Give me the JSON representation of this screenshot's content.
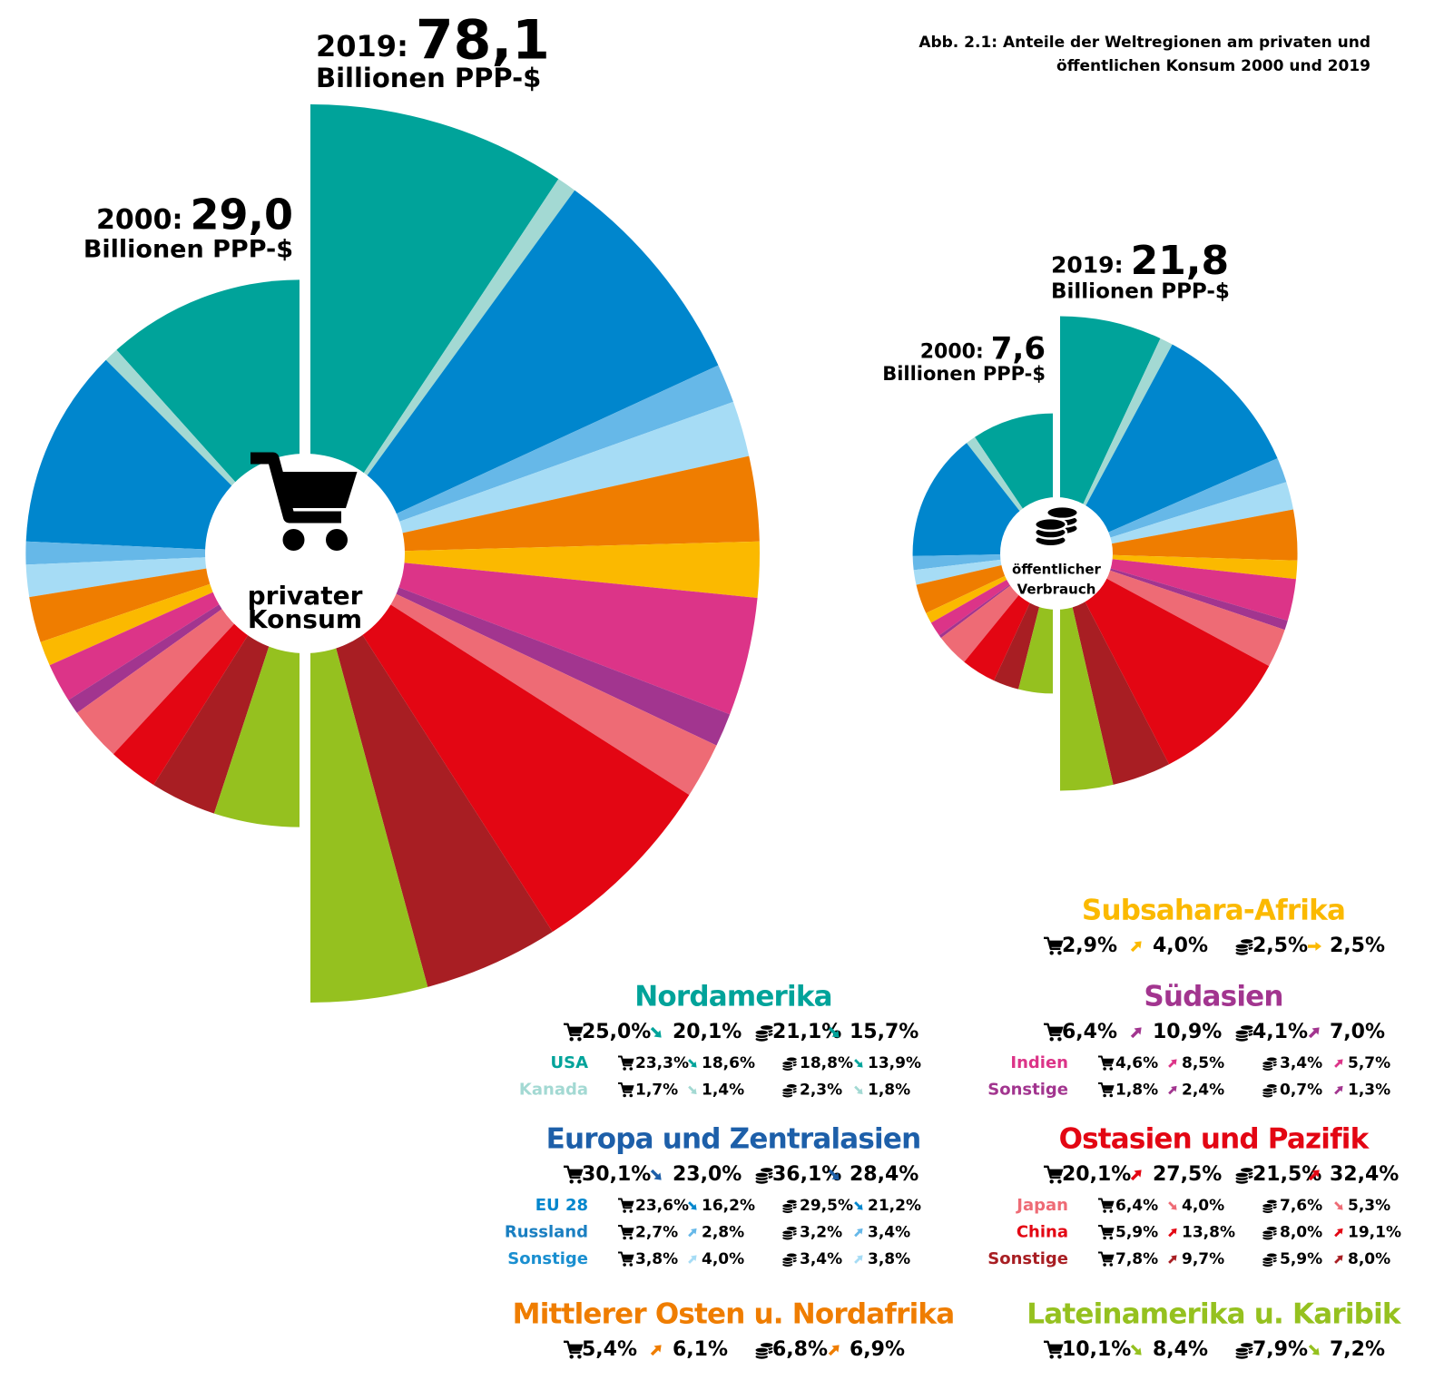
{
  "title": [
    "Abb. 2.1:  Anteile der Weltregionen am privaten und",
    "öffentlichen Konsum 2000 und  2019"
  ],
  "year_labels": [
    "2000:",
    "2019:"
  ],
  "unit": "Billionen PPP-$",
  "chart_data": [
    {
      "type": "half-pie",
      "center_label": [
        "privater",
        "Konsum"
      ],
      "totals": [
        {
          "value": 29.0,
          "label": "29,0"
        },
        {
          "value": 78.1,
          "label": "78,1"
        }
      ]
    },
    {
      "type": "half-pie",
      "center_label": [
        "öffentlicher",
        "Verbrauch"
      ],
      "totals": [
        {
          "value": 7.6,
          "label": "7,6"
        },
        {
          "value": 21.8,
          "label": "21,8"
        }
      ]
    }
  ],
  "regions": [
    {
      "name": "Nordamerika",
      "color": "#00a39a",
      "values": [
        [
          {
            "value": 25.0,
            "label": "25,0%"
          },
          {
            "value": 20.1,
            "label": "20,1%"
          }
        ],
        [
          {
            "value": 21.1,
            "label": "21,1%"
          },
          {
            "value": 15.7,
            "label": "15,7%"
          }
        ]
      ],
      "subregions": [
        {
          "name": "USA",
          "color": "#00a39a",
          "values": [
            [
              {
                "value": 23.3,
                "label": "23,3%"
              },
              {
                "value": 18.6,
                "label": "18,6%"
              }
            ],
            [
              {
                "value": 18.8,
                "label": "18,8%"
              },
              {
                "value": 13.9,
                "label": "13,9%"
              }
            ]
          ]
        },
        {
          "name": "Kanada",
          "color": "#a3d9d3",
          "values": [
            [
              {
                "value": 1.7,
                "label": "1,7%"
              },
              {
                "value": 1.4,
                "label": "1,4%"
              }
            ],
            [
              {
                "value": 2.3,
                "label": "2,3%"
              },
              {
                "value": 1.8,
                "label": "1,8%"
              }
            ]
          ]
        }
      ]
    },
    {
      "name": "Europa und Zentralasien",
      "color": "#1d5fa9",
      "values": [
        [
          {
            "value": 30.1,
            "label": "30,1%"
          },
          {
            "value": 23.0,
            "label": "23,0%"
          }
        ],
        [
          {
            "value": 36.1,
            "label": "36,1%"
          },
          {
            "value": 28.4,
            "label": "28,4%"
          }
        ]
      ],
      "subregions": [
        {
          "name": "EU 28",
          "color": "#0086cd",
          "values": [
            [
              {
                "value": 23.6,
                "label": "23,6%"
              },
              {
                "value": 16.2,
                "label": "16,2%"
              }
            ],
            [
              {
                "value": 29.5,
                "label": "29,5%"
              },
              {
                "value": 21.2,
                "label": "21,2%"
              }
            ]
          ]
        },
        {
          "name": "Russland",
          "color": "#66b8e8",
          "text_color": "#1a7fc1",
          "values": [
            [
              {
                "value": 2.7,
                "label": "2,7%"
              },
              {
                "value": 2.8,
                "label": "2,8%"
              }
            ],
            [
              {
                "value": 3.2,
                "label": "3,2%"
              },
              {
                "value": 3.4,
                "label": "3,4%"
              }
            ]
          ]
        },
        {
          "name": "Sonstige",
          "color": "#a6dcf5",
          "text_color": "#1a8fd0",
          "values": [
            [
              {
                "value": 3.8,
                "label": "3,8%"
              },
              {
                "value": 4.0,
                "label": "4,0%"
              }
            ],
            [
              {
                "value": 3.4,
                "label": "3,4%"
              },
              {
                "value": 3.8,
                "label": "3,8%"
              }
            ]
          ]
        }
      ]
    },
    {
      "name": "Mittlerer Osten u. Nordafrika",
      "color": "#ef7d00",
      "values": [
        [
          {
            "value": 5.4,
            "label": "5,4%"
          },
          {
            "value": 6.1,
            "label": "6,1%"
          }
        ],
        [
          {
            "value": 6.8,
            "label": "6,8%"
          },
          {
            "value": 6.9,
            "label": "6,9%"
          }
        ]
      ]
    },
    {
      "name": "Subsahara-Afrika",
      "color": "#fbb900",
      "values": [
        [
          {
            "value": 2.9,
            "label": "2,9%"
          },
          {
            "value": 4.0,
            "label": "4,0%"
          }
        ],
        [
          {
            "value": 2.5,
            "label": "2,5%"
          },
          {
            "value": 2.5,
            "label": "2,5%"
          }
        ]
      ]
    },
    {
      "name": "Südasien",
      "color": "#a2358f",
      "values": [
        [
          {
            "value": 6.4,
            "label": "6,4%"
          },
          {
            "value": 10.9,
            "label": "10,9%"
          }
        ],
        [
          {
            "value": 4.1,
            "label": "4,1%"
          },
          {
            "value": 7.0,
            "label": "7,0%"
          }
        ]
      ],
      "subregions": [
        {
          "name": "Indien",
          "color": "#dc3488",
          "values": [
            [
              {
                "value": 4.6,
                "label": "4,6%"
              },
              {
                "value": 8.5,
                "label": "8,5%"
              }
            ],
            [
              {
                "value": 3.4,
                "label": "3,4%"
              },
              {
                "value": 5.7,
                "label": "5,7%"
              }
            ]
          ]
        },
        {
          "name": "Sonstige",
          "color": "#a2358f",
          "values": [
            [
              {
                "value": 1.8,
                "label": "1,8%"
              },
              {
                "value": 2.4,
                "label": "2,4%"
              }
            ],
            [
              {
                "value": 0.7,
                "label": "0,7%"
              },
              {
                "value": 1.3,
                "label": "1,3%"
              }
            ]
          ]
        }
      ]
    },
    {
      "name": "Ostasien und Pazifik",
      "color": "#e30613",
      "values": [
        [
          {
            "value": 20.1,
            "label": "20,1%"
          },
          {
            "value": 27.5,
            "label": "27,5%"
          }
        ],
        [
          {
            "value": 21.5,
            "label": "21,5%"
          },
          {
            "value": 32.4,
            "label": "32,4%"
          }
        ]
      ],
      "subregions": [
        {
          "name": "Japan",
          "color": "#ee6b75",
          "values": [
            [
              {
                "value": 6.4,
                "label": "6,4%"
              },
              {
                "value": 4.0,
                "label": "4,0%"
              }
            ],
            [
              {
                "value": 7.6,
                "label": "7,6%"
              },
              {
                "value": 5.3,
                "label": "5,3%"
              }
            ]
          ]
        },
        {
          "name": "China",
          "color": "#e30613",
          "values": [
            [
              {
                "value": 5.9,
                "label": "5,9%"
              },
              {
                "value": 13.8,
                "label": "13,8%"
              }
            ],
            [
              {
                "value": 8.0,
                "label": "8,0%"
              },
              {
                "value": 19.1,
                "label": "19,1%"
              }
            ]
          ]
        },
        {
          "name": "Sonstige",
          "color": "#a81e23",
          "values": [
            [
              {
                "value": 7.8,
                "label": "7,8%"
              },
              {
                "value": 9.7,
                "label": "9,7%"
              }
            ],
            [
              {
                "value": 5.9,
                "label": "5,9%"
              },
              {
                "value": 8.0,
                "label": "8,0%"
              }
            ]
          ]
        }
      ]
    },
    {
      "name": "Lateinamerika u. Karibik",
      "color": "#95c11f",
      "values": [
        [
          {
            "value": 10.1,
            "label": "10,1%"
          },
          {
            "value": 8.4,
            "label": "8,4%"
          }
        ],
        [
          {
            "value": 7.9,
            "label": "7,9%"
          },
          {
            "value": 7.2,
            "label": "7,2%"
          }
        ]
      ]
    }
  ]
}
